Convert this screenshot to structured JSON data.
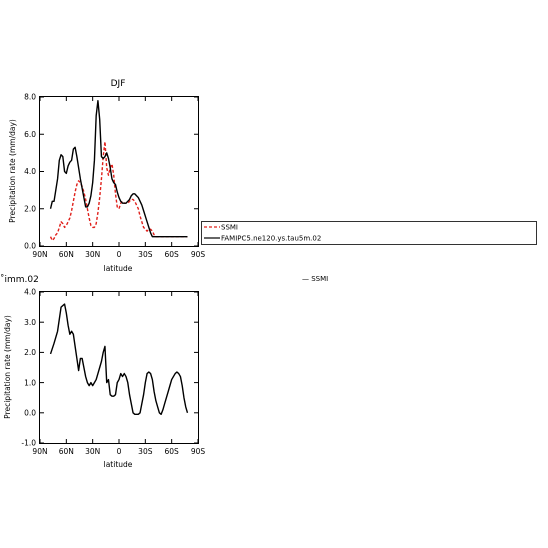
{
  "chart_data": [
    {
      "type": "line",
      "title": "DJF",
      "xlabel": "latitude",
      "ylabel": "Precipitation rate (mm/day)",
      "xticks": [
        "90N",
        "60N",
        "30N",
        "0",
        "30S",
        "60S",
        "90S"
      ],
      "yticks": [
        "0.0",
        "2.0",
        "4.0",
        "6.0",
        "8.0"
      ],
      "xlim": [
        90,
        -90
      ],
      "ylim": [
        0,
        8
      ],
      "legend_position": "right",
      "legend": [
        "SSMI",
        "FAMIPC5.ne120.ys.tau5m.02"
      ],
      "series": [
        {
          "name": "SSMI",
          "color": "#e0201b",
          "style": "dashed",
          "x": [
            78,
            76,
            74,
            72,
            70,
            68,
            66,
            64,
            62,
            60,
            58,
            56,
            54,
            52,
            50,
            48,
            46,
            44,
            42,
            40,
            38,
            36,
            34,
            32,
            30,
            28,
            26,
            24,
            22,
            20,
            18,
            16,
            14,
            12,
            10,
            8,
            6,
            4,
            2,
            0,
            -2,
            -4,
            -6,
            -8,
            -10,
            -12,
            -14,
            -16,
            -18,
            -20,
            -22,
            -24,
            -26,
            -28,
            -30,
            -32,
            -34,
            -36,
            -38,
            -40,
            -42,
            -44,
            -46,
            -48,
            -50,
            -52,
            -54,
            -56,
            -58,
            -60,
            -62,
            -64,
            -66,
            -68,
            -70,
            -72,
            -74,
            -76,
            -78
          ],
          "y": [
            0.5,
            0.3,
            0.4,
            0.6,
            0.7,
            1.0,
            1.3,
            1.2,
            1.0,
            1.1,
            1.3,
            1.5,
            1.9,
            2.4,
            2.9,
            3.3,
            3.5,
            3.4,
            3.2,
            2.9,
            2.5,
            2.0,
            1.5,
            1.1,
            1.0,
            1.0,
            1.2,
            1.8,
            2.6,
            3.6,
            4.8,
            5.6,
            4.2,
            3.8,
            4.2,
            4.4,
            3.8,
            2.8,
            2.1,
            2.0,
            2.3,
            2.4,
            2.3,
            2.3,
            2.3,
            2.4,
            2.5,
            2.5,
            2.4,
            2.2,
            2.0,
            1.6,
            1.3,
            1.0,
            0.9,
            0.8,
            0.9,
            0.9,
            0.8,
            0.6,
            0.5,
            0.5,
            0.5,
            0.5,
            0.5,
            0.5,
            0.5,
            0.5,
            0.5,
            0.5,
            0.5,
            0.5,
            0.5,
            0.5,
            0.5,
            0.5,
            0.5,
            0.5,
            0.5
          ]
        },
        {
          "name": "FAMIPC5.ne120.ys.tau5m.02",
          "color": "#000000",
          "style": "solid",
          "x": [
            78,
            76,
            74,
            72,
            70,
            68,
            66,
            64,
            62,
            60,
            58,
            56,
            54,
            52,
            50,
            48,
            46,
            44,
            42,
            40,
            38,
            36,
            34,
            32,
            30,
            28,
            26,
            24,
            22,
            20,
            18,
            16,
            14,
            12,
            10,
            8,
            6,
            4,
            2,
            0,
            -2,
            -4,
            -6,
            -8,
            -10,
            -12,
            -14,
            -16,
            -18,
            -20,
            -22,
            -24,
            -26,
            -28,
            -30,
            -32,
            -34,
            -36,
            -38,
            -40,
            -42,
            -44,
            -46,
            -48,
            -50,
            -52,
            -54,
            -56,
            -58,
            -60,
            -62,
            -64,
            -66,
            -68,
            -70,
            -72,
            -74,
            -76,
            -78
          ],
          "y": [
            2.0,
            2.4,
            2.4,
            3.0,
            3.6,
            4.6,
            4.9,
            4.8,
            4.0,
            3.9,
            4.3,
            4.5,
            4.6,
            5.2,
            5.3,
            4.8,
            4.2,
            3.6,
            3.1,
            2.6,
            2.1,
            2.1,
            2.3,
            2.7,
            3.4,
            4.6,
            7.0,
            7.8,
            6.8,
            4.8,
            4.7,
            4.8,
            5.0,
            4.7,
            4.2,
            3.6,
            3.4,
            3.3,
            2.9,
            2.6,
            2.4,
            2.3,
            2.3,
            2.3,
            2.4,
            2.5,
            2.7,
            2.8,
            2.8,
            2.7,
            2.6,
            2.4,
            2.2,
            1.9,
            1.6,
            1.3,
            1.0,
            0.7,
            0.5,
            0.5,
            0.5,
            0.5,
            0.5,
            0.5,
            0.5,
            0.5,
            0.5,
            0.5,
            0.5,
            0.5,
            0.5,
            0.5,
            0.5,
            0.5,
            0.5,
            0.5,
            0.5,
            0.5,
            0.5
          ]
        }
      ]
    },
    {
      "type": "line",
      "title": "˚imm.02",
      "xlabel": "latitude",
      "ylabel": "Precipitation rate (mm/day)",
      "xticks": [
        "90N",
        "60N",
        "30N",
        "0",
        "30S",
        "60S",
        "90S"
      ],
      "yticks": [
        "-1.0",
        "0.0",
        "1.0",
        "2.0",
        "3.0",
        "4.0"
      ],
      "xlim": [
        90,
        -90
      ],
      "ylim": [
        -1,
        4
      ],
      "legend": [
        "SSMI"
      ],
      "series": [
        {
          "name": "",
          "color": "#000000",
          "style": "solid",
          "x": [
            78,
            74,
            70,
            66,
            62,
            60,
            58,
            56,
            54,
            52,
            50,
            48,
            46,
            44,
            42,
            40,
            38,
            36,
            34,
            32,
            30,
            28,
            26,
            24,
            22,
            20,
            18,
            16,
            14,
            12,
            10,
            8,
            6,
            4,
            2,
            0,
            -2,
            -4,
            -6,
            -8,
            -10,
            -12,
            -14,
            -16,
            -18,
            -20,
            -22,
            -24,
            -26,
            -28,
            -30,
            -32,
            -34,
            -36,
            -38,
            -40,
            -42,
            -44,
            -46,
            -48,
            -50,
            -52,
            -54,
            -56,
            -58,
            -60,
            -62,
            -64,
            -66,
            -68,
            -70,
            -72,
            -74,
            -76,
            -78
          ],
          "y": [
            1.95,
            2.3,
            2.7,
            3.5,
            3.6,
            3.3,
            2.9,
            2.6,
            2.7,
            2.6,
            2.2,
            1.8,
            1.4,
            1.8,
            1.8,
            1.5,
            1.2,
            1.0,
            0.9,
            1.0,
            0.9,
            1.0,
            1.1,
            1.3,
            1.5,
            1.7,
            2.0,
            2.2,
            1.0,
            1.1,
            0.6,
            0.55,
            0.55,
            0.6,
            1.0,
            1.1,
            1.3,
            1.2,
            1.3,
            1.2,
            1.0,
            0.6,
            0.3,
            0.0,
            -0.05,
            -0.05,
            -0.05,
            0.0,
            0.3,
            0.6,
            1.0,
            1.3,
            1.35,
            1.3,
            1.1,
            0.7,
            0.4,
            0.2,
            0.0,
            -0.05,
            0.1,
            0.3,
            0.5,
            0.7,
            0.9,
            1.1,
            1.2,
            1.3,
            1.35,
            1.3,
            1.2,
            0.9,
            0.5,
            0.2,
            0.0
          ]
        }
      ]
    }
  ]
}
